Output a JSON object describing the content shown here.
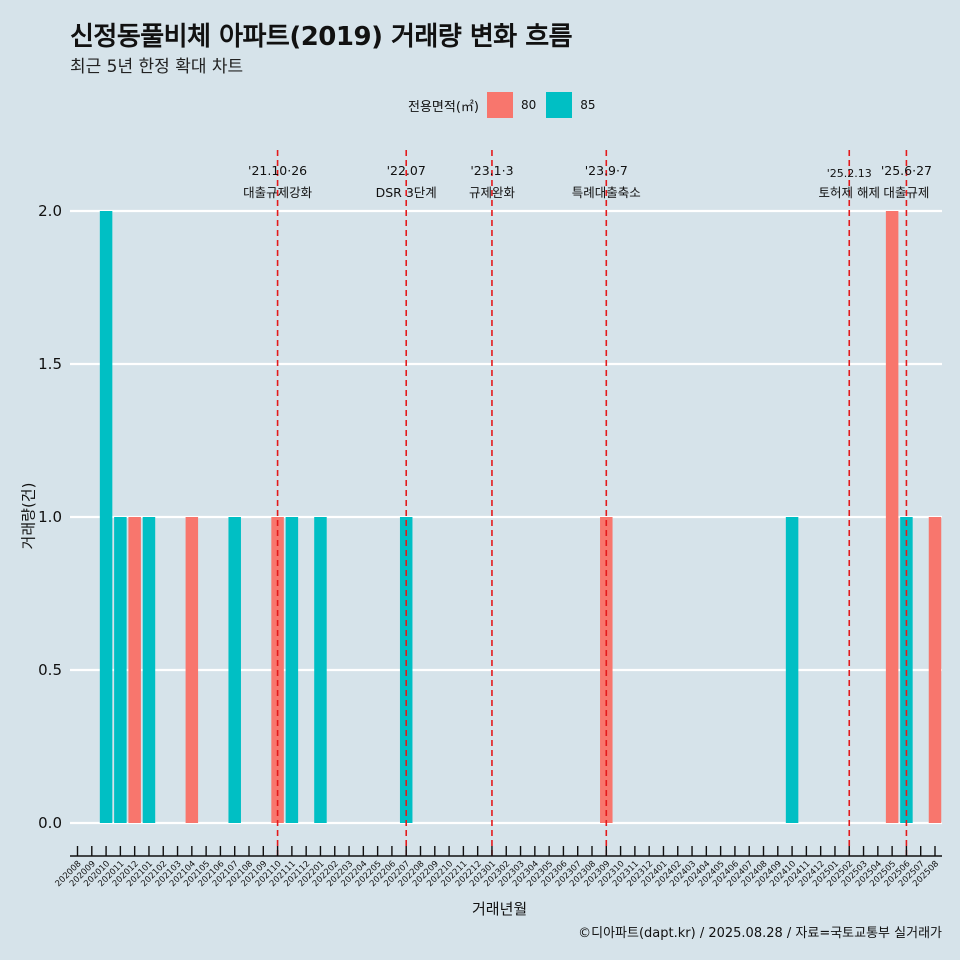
{
  "header": {
    "title": "신정동풀비체 아파트(2019) 거래량 변화 흐름",
    "subtitle": "최근 5년 한정 확대 차트"
  },
  "legend": {
    "title": "전용면적(㎡)",
    "items": [
      {
        "label": "80",
        "color": "#f8766d"
      },
      {
        "label": "85",
        "color": "#00bfc4"
      }
    ]
  },
  "caption": "©디아파트(dapt.kr) / 2025.08.28 / 자료=국토교통부 실거래가",
  "chart_data": {
    "type": "bar",
    "title": "신정동풀비체 아파트(2019) 거래량 변화 흐름",
    "subtitle": "최근 5년 한정 확대 차트",
    "xlabel": "거래년월",
    "ylabel": "거래량(건)",
    "ylim": [
      0,
      2
    ],
    "yticks": [
      "0.0",
      "0.5",
      "1.0",
      "1.5",
      "2.0"
    ],
    "ytick_values": [
      0,
      0.5,
      1.0,
      1.5,
      2.0
    ],
    "grid": true,
    "legend_position": "top",
    "categories": [
      "202008",
      "202009",
      "202010",
      "202011",
      "202012",
      "202101",
      "202102",
      "202103",
      "202104",
      "202105",
      "202106",
      "202107",
      "202108",
      "202109",
      "202110",
      "202111",
      "202112",
      "202201",
      "202202",
      "202203",
      "202204",
      "202205",
      "202206",
      "202207",
      "202208",
      "202209",
      "202210",
      "202211",
      "202212",
      "202301",
      "202302",
      "202303",
      "202304",
      "202305",
      "202306",
      "202307",
      "202308",
      "202309",
      "202310",
      "202311",
      "202312",
      "202401",
      "202402",
      "202403",
      "202404",
      "202405",
      "202406",
      "202407",
      "202408",
      "202409",
      "202410",
      "202411",
      "202412",
      "202501",
      "202502",
      "202503",
      "202504",
      "202505",
      "202506",
      "202507",
      "202508"
    ],
    "series": [
      {
        "name": "80",
        "color": "#f8766d",
        "points": [
          {
            "x": "202012",
            "y": 1
          },
          {
            "x": "202104",
            "y": 1
          },
          {
            "x": "202110",
            "y": 1
          },
          {
            "x": "202309",
            "y": 1
          },
          {
            "x": "202505",
            "y": 2
          },
          {
            "x": "202508",
            "y": 1
          }
        ]
      },
      {
        "name": "85",
        "color": "#00bfc4",
        "points": [
          {
            "x": "202010",
            "y": 2
          },
          {
            "x": "202011",
            "y": 1
          },
          {
            "x": "202101",
            "y": 1
          },
          {
            "x": "202107",
            "y": 1
          },
          {
            "x": "202111",
            "y": 1
          },
          {
            "x": "202201",
            "y": 1
          },
          {
            "x": "202207",
            "y": 1
          },
          {
            "x": "202410",
            "y": 1
          },
          {
            "x": "202506",
            "y": 1
          }
        ]
      }
    ],
    "annotations": [
      {
        "x": "202110",
        "line1": "'21.10·26",
        "line2": "대출규제강화"
      },
      {
        "x": "202207",
        "line1": "'22.07",
        "line2": "DSR 3단계"
      },
      {
        "x": "202301",
        "line1": "'23.1·3",
        "line2": "규제완화"
      },
      {
        "x": "202309",
        "line1": "'23.9·7",
        "line2": "특례대출축소"
      },
      {
        "x": "202502",
        "line1": "'25.2.13",
        "line2": "토허제 해제"
      },
      {
        "x": "202506",
        "line1": "'25.6·27",
        "line2": "대출규제"
      }
    ],
    "annotation_color": "#e31a1c"
  }
}
